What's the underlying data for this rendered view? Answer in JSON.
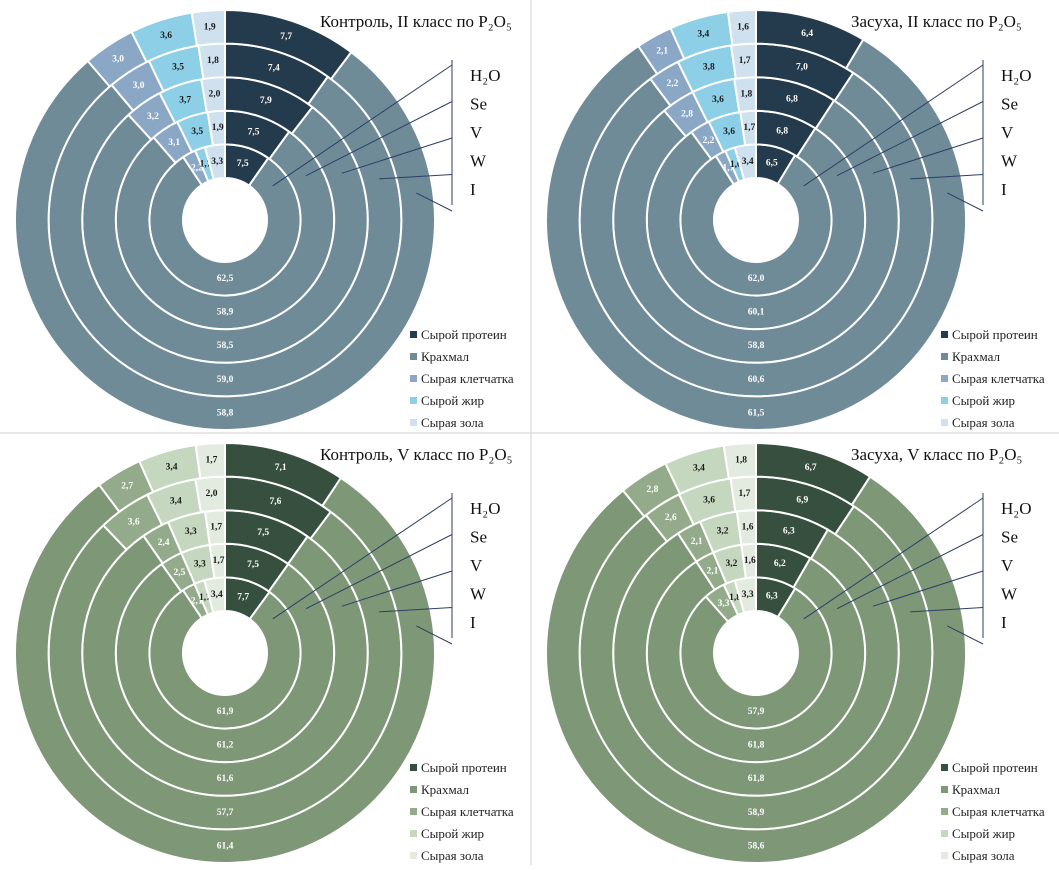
{
  "chart_data": [
    {
      "type": "multi-ring-donut",
      "title": "Контроль, II класс по P₂O₅",
      "rings": [
        "H₂O",
        "Se",
        "V",
        "W",
        "I"
      ],
      "series": [
        {
          "name": "Сырой протеин",
          "color": "#243a4d",
          "values": [
            7.5,
            7.5,
            7.9,
            7.4,
            7.7
          ],
          "value_labels": [
            "7,5",
            "7,5",
            "7,9",
            "7,4",
            "7,7"
          ]
        },
        {
          "name": "Крахмал",
          "color": "#6f8b98",
          "values": [
            62.5,
            58.9,
            58.5,
            59.0,
            58.8
          ],
          "value_labels": [
            "62,5",
            "58,9",
            "58,5",
            "59,0",
            "58,8"
          ]
        },
        {
          "name": "Сырая клетчатка",
          "color": "#8aa7c6",
          "values": [
            2.2,
            3.1,
            3.2,
            3.0,
            3.0
          ],
          "value_labels": [
            "2,2",
            "3,1",
            "3,2",
            "3,0",
            "3,0"
          ]
        },
        {
          "name": "Сырой жир",
          "color": "#8ecfe8",
          "values": [
            1.7,
            3.5,
            3.7,
            3.5,
            3.6
          ],
          "value_labels": [
            "1,7",
            "3,5",
            "3,7",
            "3,5",
            "3,6"
          ]
        },
        {
          "name": "Сырая зола",
          "color": "#cfe0ee",
          "values": [
            3.3,
            1.9,
            2.0,
            1.8,
            1.9
          ],
          "value_labels": [
            "3,3",
            "1,9",
            "2,0",
            "1,8",
            "1,9"
          ]
        }
      ]
    },
    {
      "type": "multi-ring-donut",
      "title": "Засуха, II класс по P₂O₅",
      "rings": [
        "H₂O",
        "Se",
        "V",
        "W",
        "I"
      ],
      "series": [
        {
          "name": "Сырой протеин",
          "color": "#243a4d",
          "values": [
            6.5,
            6.8,
            6.8,
            7.0,
            6.4
          ],
          "value_labels": [
            "6,5",
            "6,8",
            "6,8",
            "7,0",
            "6,4"
          ]
        },
        {
          "name": "Крахмал",
          "color": "#6f8b98",
          "values": [
            62.0,
            60.1,
            58.8,
            60.6,
            61.5
          ],
          "value_labels": [
            "62,0",
            "60,1",
            "58,8",
            "60,6",
            "61,5"
          ]
        },
        {
          "name": "Сырая клетчатка",
          "color": "#8aa7c6",
          "values": [
            1.7,
            2.2,
            2.8,
            2.2,
            2.1
          ],
          "value_labels": [
            "1,7",
            "2,2",
            "2,8",
            "2,2",
            "2,1"
          ]
        },
        {
          "name": "Сырой жир",
          "color": "#8ecfe8",
          "values": [
            1.6,
            3.6,
            3.6,
            3.8,
            3.4
          ],
          "value_labels": [
            "1,6",
            "3,6",
            "3,6",
            "3,8",
            "3,4"
          ]
        },
        {
          "name": "Сырая зола",
          "color": "#cfe0ee",
          "values": [
            3.4,
            1.7,
            1.8,
            1.7,
            1.6
          ],
          "value_labels": [
            "3,4",
            "1,7",
            "1,8",
            "1,7",
            "1,6"
          ]
        }
      ]
    },
    {
      "type": "multi-ring-donut",
      "title": "Контроль, V класс по P₂O₅",
      "rings": [
        "H₂O",
        "Se",
        "V",
        "W",
        "I"
      ],
      "series": [
        {
          "name": "Сырой протеин",
          "color": "#364f3e",
          "values": [
            7.7,
            7.5,
            7.5,
            7.6,
            7.1
          ],
          "value_labels": [
            "7,7",
            "7,5",
            "7,5",
            "7,6",
            "7,1"
          ]
        },
        {
          "name": "Крахмал",
          "color": "#7e9777",
          "values": [
            61.9,
            61.2,
            61.6,
            57.7,
            61.4
          ],
          "value_labels": [
            "61,9",
            "61,2",
            "61,6",
            "57,7",
            "61,4"
          ]
        },
        {
          "name": "Сырая клетчатка",
          "color": "#93ab8a",
          "values": [
            2.1,
            2.5,
            2.4,
            3.6,
            2.7
          ],
          "value_labels": [
            "2,1",
            "2,5",
            "2,4",
            "3,6",
            "2,7"
          ]
        },
        {
          "name": "Сырой жир",
          "color": "#c6d7c0",
          "values": [
            1.7,
            3.3,
            3.3,
            3.4,
            3.4
          ],
          "value_labels": [
            "1,7",
            "3,3",
            "3,3",
            "3,4",
            "3,4"
          ]
        },
        {
          "name": "Сырая зола",
          "color": "#e3ebe0",
          "values": [
            3.4,
            1.7,
            1.7,
            2.0,
            1.7
          ],
          "value_labels": [
            "3,4",
            "1,7",
            "1,7",
            "2,0",
            "1,7"
          ]
        }
      ]
    },
    {
      "type": "multi-ring-donut",
      "title": "Засуха, V класс по P₂O₅",
      "rings": [
        "H₂O",
        "Se",
        "V",
        "W",
        "I"
      ],
      "series": [
        {
          "name": "Сырой протеин",
          "color": "#364f3e",
          "values": [
            6.3,
            6.2,
            6.3,
            6.9,
            6.7
          ],
          "value_labels": [
            "6,3",
            "6,2",
            "6,3",
            "6,9",
            "6,7"
          ]
        },
        {
          "name": "Крахмал",
          "color": "#7e9777",
          "values": [
            57.9,
            61.8,
            61.8,
            58.9,
            58.6
          ],
          "value_labels": [
            "57,9",
            "61,8",
            "61,8",
            "58,9",
            "58,6"
          ]
        },
        {
          "name": "Сырая клетчатка",
          "color": "#93ab8a",
          "values": [
            3.3,
            2.1,
            2.1,
            2.6,
            2.8
          ],
          "value_labels": [
            "3,3",
            "2,1",
            "2,1",
            "2,6",
            "2,8"
          ]
        },
        {
          "name": "Сырой жир",
          "color": "#c6d7c0",
          "values": [
            1.8,
            3.2,
            3.2,
            3.6,
            3.4
          ],
          "value_labels": [
            "1,8",
            "3,2",
            "3,2",
            "3,6",
            "3,4"
          ]
        },
        {
          "name": "Сырая зола",
          "color": "#e3ebe0",
          "values": [
            3.3,
            1.6,
            1.6,
            1.7,
            1.8
          ],
          "value_labels": [
            "3,3",
            "1,6",
            "1,6",
            "1,7",
            "1,8"
          ]
        }
      ]
    }
  ]
}
